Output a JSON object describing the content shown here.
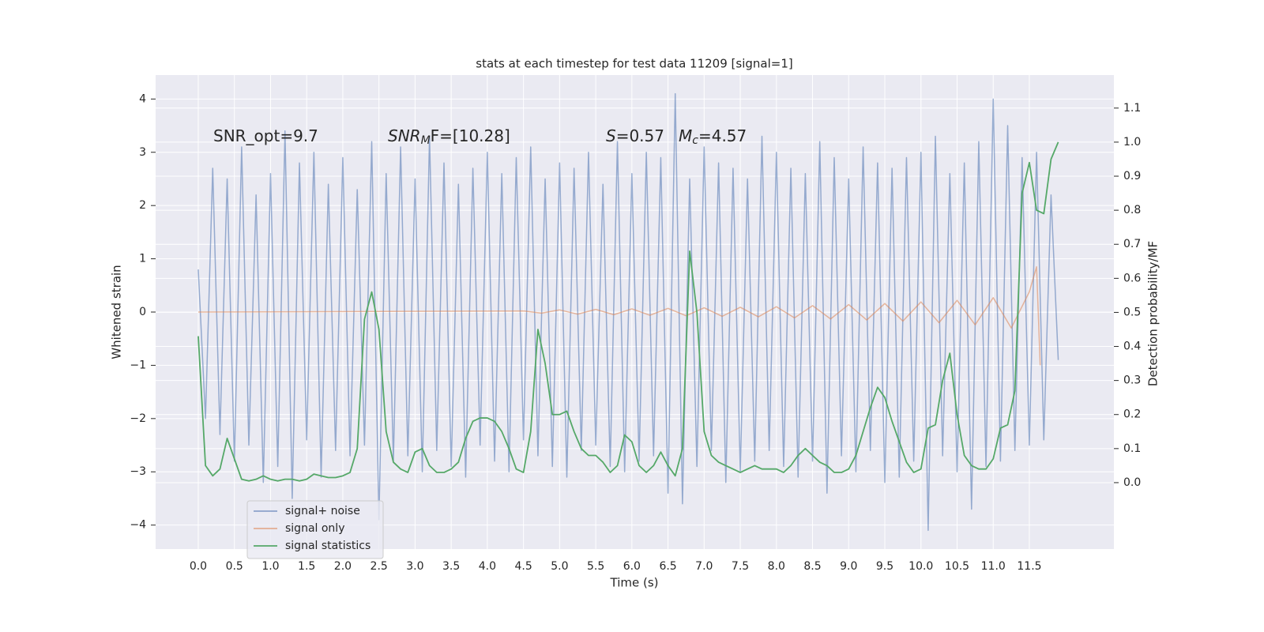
{
  "chart_data": {
    "type": "line",
    "title": "stats at each timestep for test data 11209 [signal=1]",
    "x_label": "Time (s)",
    "y_label": "Whitened strain",
    "y2_label": "Detection probability/MF",
    "annotations": [
      {
        "parts": [
          {
            "text": "SNR_opt=9.7"
          }
        ]
      },
      {
        "parts": [
          {
            "text": "SNR",
            "italic": true
          },
          {
            "text": "M",
            "italic": true,
            "sub": true
          },
          {
            "text": "F=[10.28]"
          }
        ]
      },
      {
        "parts": [
          {
            "text": "S",
            "italic": true
          },
          {
            "text": "=0.57"
          }
        ]
      },
      {
        "parts": [
          {
            "text": "M",
            "italic": true
          },
          {
            "text": "c",
            "italic": true,
            "sub": true
          },
          {
            "text": "=4.57"
          }
        ]
      }
    ],
    "xlim": [
      -0.59,
      12.67
    ],
    "ylim": [
      -4.45,
      4.45
    ],
    "y2lim": [
      -0.195,
      1.197
    ],
    "xticks": [
      {
        "value": 0,
        "label": "0.0"
      },
      0.5,
      {
        "value": 1,
        "label": "1.0"
      },
      1.5,
      {
        "value": 2,
        "label": "2.0"
      },
      2.5,
      {
        "value": 3,
        "label": "3.0"
      },
      3.5,
      {
        "value": 4,
        "label": "4.0"
      },
      4.5,
      {
        "value": 5,
        "label": "5.0"
      },
      5.5,
      {
        "value": 6,
        "label": "6.0"
      },
      6.5,
      {
        "value": 7,
        "label": "7.0"
      },
      7.5,
      {
        "value": 8,
        "label": "8.0"
      },
      8.5,
      {
        "value": 9,
        "label": "9.0"
      },
      9.5,
      {
        "value": 10,
        "label": "10.0"
      },
      10.5,
      {
        "value": 11,
        "label": "11.0"
      },
      11.5
    ],
    "yticks": [
      {
        "value": -4,
        "label": "−4"
      },
      {
        "value": -3,
        "label": "−3"
      },
      {
        "value": -2,
        "label": "−2"
      },
      {
        "value": -1,
        "label": "−1"
      },
      0,
      1,
      2,
      3,
      4
    ],
    "y2ticks": [
      {
        "value": 0,
        "label": "0.0"
      },
      0.1,
      0.2,
      0.3,
      0.4,
      0.5,
      0.6,
      0.7,
      0.8,
      0.9,
      {
        "value": 1,
        "label": "1.0"
      },
      1.1
    ],
    "grid": true,
    "legend": "lower left",
    "x": [
      0,
      0.1,
      0.2,
      0.3,
      0.4,
      0.5,
      0.6,
      0.7,
      0.8,
      0.9,
      1,
      1.1,
      1.2,
      1.3,
      1.4,
      1.5,
      1.6,
      1.7,
      1.8,
      1.9,
      2,
      2.1,
      2.2,
      2.3,
      2.4,
      2.5,
      2.6,
      2.7,
      2.8,
      2.9,
      3,
      3.1,
      3.2,
      3.3,
      3.4,
      3.5,
      3.6,
      3.7,
      3.8,
      3.9,
      4,
      4.1,
      4.2,
      4.3,
      4.4,
      4.5,
      4.6,
      4.7,
      4.8,
      4.9,
      5,
      5.1,
      5.2,
      5.3,
      5.4,
      5.5,
      5.6,
      5.7,
      5.8,
      5.9,
      6,
      6.1,
      6.2,
      6.3,
      6.4,
      6.5,
      6.6,
      6.7,
      6.8,
      6.9,
      7,
      7.1,
      7.2,
      7.3,
      7.4,
      7.5,
      7.6,
      7.7,
      7.8,
      7.9,
      8,
      8.1,
      8.2,
      8.3,
      8.4,
      8.5,
      8.6,
      8.7,
      8.8,
      8.9,
      9,
      9.1,
      9.2,
      9.3,
      9.4,
      9.5,
      9.6,
      9.7,
      9.8,
      9.9,
      10,
      10.1,
      10.2,
      10.3,
      10.4,
      10.5,
      10.6,
      10.7,
      10.8,
      10.9,
      11,
      11.1,
      11.2,
      11.3,
      11.4,
      11.5,
      11.6,
      11.7,
      11.8,
      11.9
    ],
    "series": [
      {
        "name": "signal+ noise",
        "color": "#4c72b0",
        "values": [
          0.8,
          -2.0,
          2.7,
          -2.3,
          2.5,
          -2.8,
          3.1,
          -2.5,
          2.2,
          -3.2,
          2.6,
          -2.9,
          3.4,
          -3.5,
          2.8,
          -2.4,
          3.0,
          -3.1,
          2.4,
          -2.6,
          2.9,
          -2.7,
          2.3,
          -2.5,
          3.2,
          -3.9,
          2.6,
          -2.8,
          3.1,
          -2.7,
          2.5,
          -3.0,
          3.3,
          -2.6,
          2.8,
          -2.9,
          2.4,
          -3.1,
          2.7,
          -2.5,
          3.0,
          -2.8,
          2.6,
          -3.0,
          2.9,
          -2.4,
          3.1,
          -2.7,
          2.5,
          -2.9,
          2.8,
          -3.1,
          2.7,
          -2.6,
          3.0,
          -2.5,
          2.4,
          -2.9,
          3.2,
          -3.0,
          2.6,
          -2.8,
          3.0,
          -2.7,
          2.9,
          -3.4,
          4.1,
          -3.6,
          2.5,
          -2.9,
          3.1,
          -2.6,
          2.8,
          -3.2,
          2.7,
          -3.0,
          2.5,
          -2.8,
          3.3,
          -2.6,
          3.0,
          -2.9,
          2.7,
          -3.1,
          2.6,
          -2.8,
          3.2,
          -3.4,
          2.9,
          -2.7,
          2.5,
          -3.0,
          3.1,
          -2.6,
          2.8,
          -3.2,
          2.7,
          -3.1,
          2.9,
          -2.8,
          3.0,
          -4.1,
          3.3,
          -2.7,
          2.6,
          -3.0,
          2.8,
          -3.7,
          3.2,
          -2.9,
          4.0,
          -2.8,
          3.5,
          -2.6,
          2.9,
          -2.5,
          3.0,
          -2.4,
          2.2,
          -0.9
        ]
      },
      {
        "name": "signal only",
        "color": "#dd8452",
        "x": [
          0,
          4.5,
          4.75,
          5,
          5.25,
          5.5,
          5.75,
          6,
          6.25,
          6.5,
          6.75,
          7,
          7.25,
          7.5,
          7.75,
          8,
          8.25,
          8.5,
          8.75,
          9,
          9.25,
          9.5,
          9.75,
          10,
          10.25,
          10.5,
          10.75,
          11,
          11.25,
          11.5,
          11.6,
          11.65
        ],
        "values": [
          0,
          0.02,
          -0.02,
          0.04,
          -0.04,
          0.05,
          -0.05,
          0.06,
          -0.06,
          0.07,
          -0.07,
          0.08,
          -0.08,
          0.09,
          -0.09,
          0.1,
          -0.11,
          0.12,
          -0.13,
          0.14,
          -0.15,
          0.16,
          -0.17,
          0.19,
          -0.2,
          0.22,
          -0.24,
          0.27,
          -0.3,
          0.38,
          0.85,
          -1.0
        ]
      },
      {
        "name": "signal statistics",
        "color": "#55a868",
        "axis": "y2",
        "values": [
          0.43,
          0.05,
          0.02,
          0.04,
          0.13,
          0.07,
          0.01,
          0.005,
          0.01,
          0.02,
          0.01,
          0.005,
          0.01,
          0.01,
          0.005,
          0.01,
          0.025,
          0.02,
          0.015,
          0.015,
          0.02,
          0.03,
          0.1,
          0.48,
          0.56,
          0.45,
          0.15,
          0.06,
          0.04,
          0.03,
          0.09,
          0.1,
          0.05,
          0.03,
          0.03,
          0.04,
          0.06,
          0.13,
          0.18,
          0.19,
          0.19,
          0.18,
          0.15,
          0.1,
          0.04,
          0.03,
          0.15,
          0.45,
          0.35,
          0.2,
          0.2,
          0.21,
          0.15,
          0.1,
          0.08,
          0.08,
          0.06,
          0.03,
          0.05,
          0.14,
          0.12,
          0.05,
          0.03,
          0.05,
          0.09,
          0.05,
          0.02,
          0.1,
          0.68,
          0.5,
          0.15,
          0.08,
          0.06,
          0.05,
          0.04,
          0.03,
          0.04,
          0.05,
          0.04,
          0.04,
          0.04,
          0.03,
          0.05,
          0.08,
          0.1,
          0.08,
          0.06,
          0.05,
          0.03,
          0.03,
          0.04,
          0.08,
          0.15,
          0.22,
          0.28,
          0.25,
          0.18,
          0.12,
          0.06,
          0.03,
          0.04,
          0.16,
          0.17,
          0.3,
          0.38,
          0.2,
          0.08,
          0.05,
          0.04,
          0.04,
          0.07,
          0.16,
          0.17,
          0.27,
          0.85,
          0.94,
          0.8,
          0.79,
          0.95,
          1.0
        ]
      }
    ]
  }
}
